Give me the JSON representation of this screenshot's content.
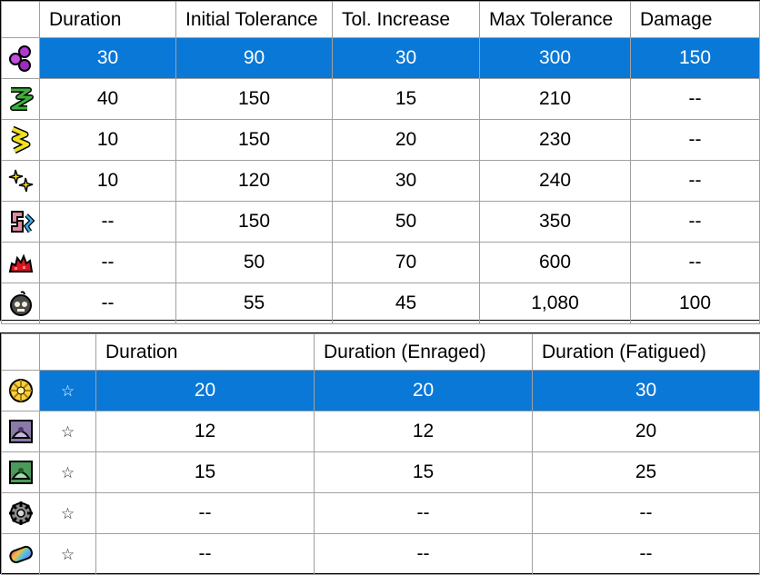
{
  "top_table": {
    "columns": [
      "",
      "Duration",
      "Initial Tolerance",
      "Tol. Increase",
      "Max Tolerance",
      "Damage"
    ],
    "rows": [
      {
        "icon": "purple-orbs-icon",
        "cells": [
          "30",
          "90",
          "30",
          "300",
          "150"
        ],
        "selected": true
      },
      {
        "icon": "green-zigzag-icon",
        "cells": [
          "40",
          "150",
          "15",
          "210",
          "--"
        ]
      },
      {
        "icon": "yellow-chevrons-icon",
        "cells": [
          "10",
          "150",
          "20",
          "230",
          "--"
        ]
      },
      {
        "icon": "yellow-sparkle-icon",
        "cells": [
          "10",
          "120",
          "30",
          "240",
          "--"
        ]
      },
      {
        "icon": "pink-blue-swirl-icon",
        "cells": [
          "--",
          "150",
          "50",
          "350",
          "--"
        ]
      },
      {
        "icon": "red-blob-icon",
        "cells": [
          "--",
          "50",
          "70",
          "600",
          "--"
        ]
      },
      {
        "icon": "skull-bomb-icon",
        "cells": [
          "--",
          "55",
          "45",
          "1,080",
          "100"
        ]
      }
    ]
  },
  "bottom_table": {
    "columns": [
      "",
      "",
      "Duration",
      "Duration (Enraged)",
      "Duration (Fatigued)"
    ],
    "star_glyph": "☆",
    "rows": [
      {
        "icon": "yellow-burst-icon",
        "cells": [
          "20",
          "20",
          "30"
        ],
        "selected": true
      },
      {
        "icon": "purple-trap-icon",
        "cells": [
          "12",
          "12",
          "20"
        ]
      },
      {
        "icon": "green-trap-icon",
        "cells": [
          "15",
          "15",
          "25"
        ]
      },
      {
        "icon": "gray-gear-icon",
        "cells": [
          "--",
          "--",
          "--"
        ]
      },
      {
        "icon": "rainbow-capsule-icon",
        "cells": [
          "--",
          "--",
          "--"
        ]
      }
    ]
  },
  "colors": {
    "selection": "#0a78d7",
    "grid": "#a0a0a0",
    "border": "#000000"
  }
}
